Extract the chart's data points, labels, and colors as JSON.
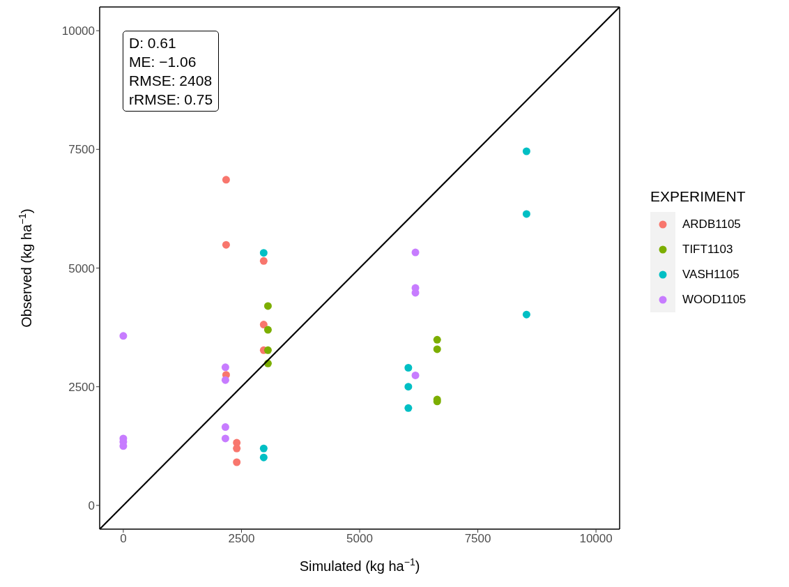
{
  "chart_data": {
    "type": "scatter",
    "xlabel": "Simulated (kg ha$^{−1}$)",
    "ylabel": "Observed (kg ha$^{−1}$)",
    "legend_title": "EXPERIMENT",
    "legend": "right",
    "marker": "circle",
    "xlim": [
      -500,
      10500
    ],
    "ylim": [
      -500,
      10500
    ],
    "xticks": [
      0,
      2500,
      5000,
      7500,
      10000
    ],
    "yticks": [
      0,
      2500,
      5000,
      7500,
      10000
    ],
    "annotations": [
      "D: 0.61",
      "ME: −1.06",
      "RMSE: 2408",
      "rRMSE: 0.75"
    ],
    "series": [
      {
        "name": "ARDB1105",
        "color": "#f8766d",
        "x": [
          2175,
          2175,
          2970,
          2970,
          2970,
          2175,
          2400,
          2400,
          2400
        ],
        "values": [
          6860,
          5490,
          5150,
          3810,
          3270,
          2750,
          1320,
          1200,
          910
        ]
      },
      {
        "name": "TIFT1103",
        "color": "#7cae00",
        "x": [
          3060,
          3060,
          3060,
          3060,
          6640,
          6640,
          6640,
          6640
        ],
        "values": [
          4200,
          3700,
          3270,
          2990,
          3490,
          3290,
          2230,
          2190
        ]
      },
      {
        "name": "VASH1105",
        "color": "#00bfc4",
        "x": [
          2970,
          2970,
          2970,
          8530,
          8530,
          8530,
          6030,
          6030,
          6030
        ],
        "values": [
          5320,
          1200,
          1010,
          7460,
          6140,
          4020,
          2900,
          2500,
          2050
        ]
      },
      {
        "name": "WOOD1105",
        "color": "#c77cff",
        "x": [
          0,
          0,
          0,
          0,
          2160,
          2160,
          2160,
          2160,
          6180,
          6180,
          6180,
          6180
        ],
        "values": [
          3570,
          1410,
          1340,
          1250,
          2910,
          2640,
          1650,
          1410,
          5330,
          4580,
          4480,
          2740
        ]
      },
      {
        "type": "line",
        "color": "#000000",
        "line_style": "solid",
        "marker": "none",
        "x": [
          -500,
          10500
        ],
        "values": [
          -500,
          10500
        ]
      }
    ]
  }
}
